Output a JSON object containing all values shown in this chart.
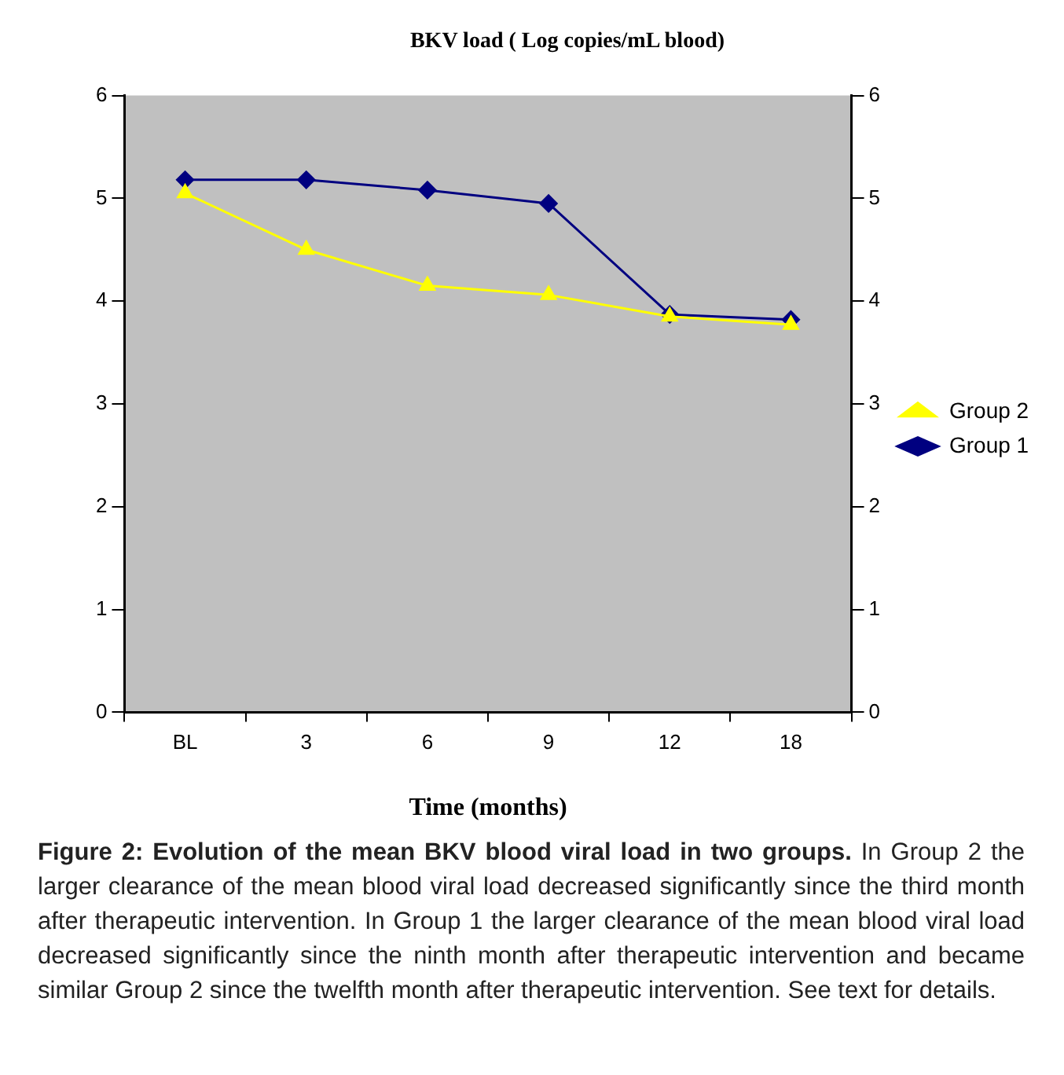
{
  "chart_data": {
    "type": "line",
    "title": "BKV load ( Log copies/mL blood)",
    "xlabel": "Time (months)",
    "categories": [
      "BL",
      "3",
      "6",
      "9",
      "12",
      "18"
    ],
    "series": [
      {
        "name": "Group 2",
        "color": "#ffff00",
        "marker": "triangle",
        "values": [
          5.05,
          4.5,
          4.15,
          4.06,
          3.85,
          3.77
        ]
      },
      {
        "name": "Group 1",
        "color": "#000080",
        "marker": "diamond",
        "values": [
          5.18,
          5.18,
          5.08,
          4.95,
          3.87,
          3.82
        ]
      }
    ],
    "ylim": [
      0,
      6
    ],
    "yticks": [
      0,
      1,
      2,
      3,
      4,
      5,
      6
    ],
    "y2lim": [
      0,
      6
    ],
    "y2ticks": [
      0,
      1,
      2,
      3,
      4,
      5,
      6
    ],
    "grid": false,
    "legend": "right",
    "annotations": [
      "Figure 2: Evolution of the mean BKV blood viral load in two groups.",
      "In Group 2 the larger clearance of the mean blood viral load decreased significantly since the third month after therapeutic intervention. In Group 1 the larger clearance of the mean blood viral load decreased significantly since the ninth month after therapeutic intervention and became similar Group 2 since the twelfth month after therapeutic intervention. See text for details."
    ]
  }
}
